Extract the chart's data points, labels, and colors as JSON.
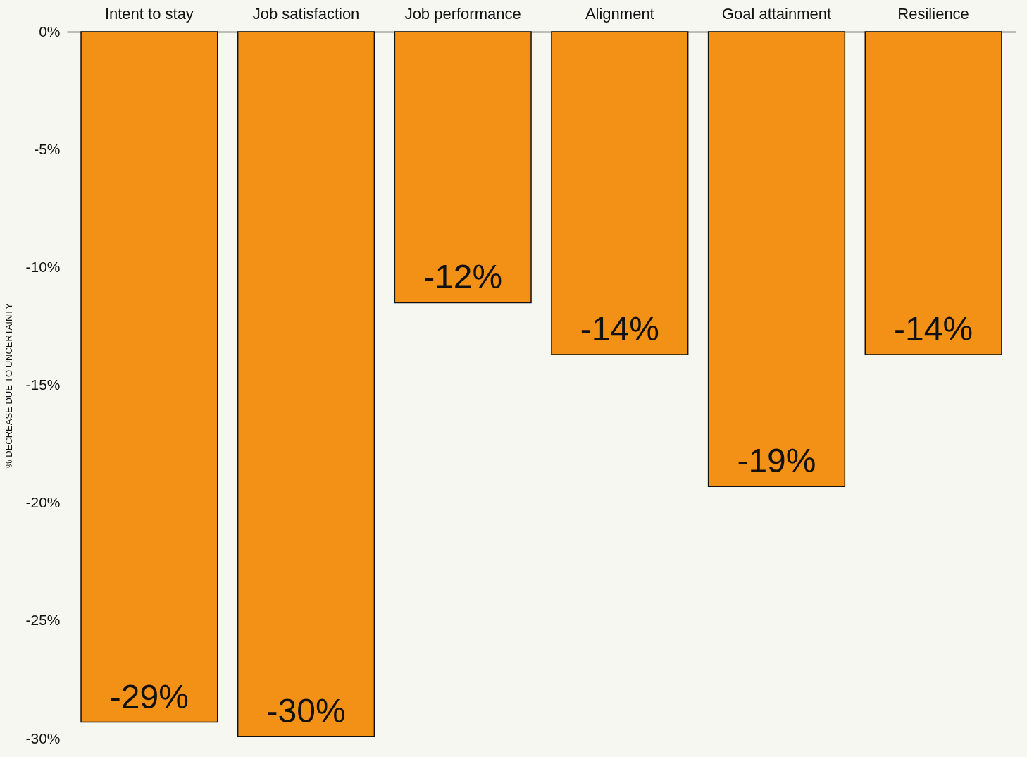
{
  "chart_data": {
    "type": "bar",
    "categories": [
      "Intent to stay",
      "Job satisfaction",
      "Job performance",
      "Alignment",
      "Goal attainment",
      "Resilience"
    ],
    "values": [
      -29.3,
      -29.9,
      -11.5,
      -13.7,
      -19.3,
      -13.7
    ],
    "value_labels": [
      "-29%",
      "-30%",
      "-12%",
      "-14%",
      "-19%",
      "-14%"
    ],
    "color": "#f39016",
    "ylabel": "% DECREASE DUE TO UNCERTAINTY",
    "ylim": [
      -30,
      0
    ],
    "yticks": [
      {
        "value": 0,
        "label": "0%"
      },
      {
        "value": -5,
        "label": "-5%"
      },
      {
        "value": -10,
        "label": "-10%"
      },
      {
        "value": -15,
        "label": "-15%"
      },
      {
        "value": -20,
        "label": "-20%"
      },
      {
        "value": -25,
        "label": "-25%"
      },
      {
        "value": -30,
        "label": "-30%"
      }
    ],
    "grid": false
  }
}
